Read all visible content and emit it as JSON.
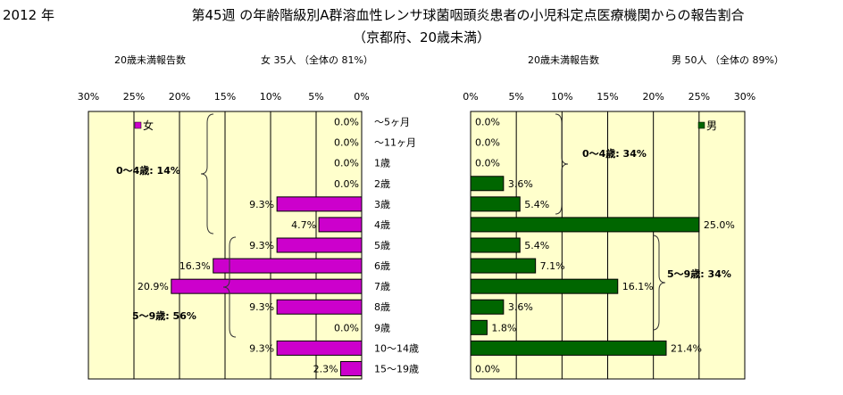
{
  "header": {
    "year": "2012 年",
    "title_line1": "第45週 の年齢階級別A群溶血性レンサ球菌咽頭炎患者の小児科定点医療機関からの報告割合",
    "title_line2": "（京都府、20歳未満）"
  },
  "colors": {
    "female_bar": "#cc00cc",
    "male_bar": "#006600",
    "plot_bg": "#ffffcc"
  },
  "chart_data": [
    {
      "type": "bar",
      "orientation": "horizontal",
      "direction": "right-to-left",
      "subtitle_left": "20歳未満報告数",
      "subtitle_right": "女  35人 （全体の  81%）",
      "legend": "女",
      "legend_position": "top-left",
      "xlim": [
        0,
        30
      ],
      "ticks": [
        "30%",
        "25%",
        "20%",
        "15%",
        "10%",
        "5%",
        "0%"
      ],
      "tick_values": [
        30,
        25,
        20,
        15,
        10,
        5,
        0
      ],
      "categories": [
        "～5ヶ月",
        "～11ヶ月",
        "1歳",
        "2歳",
        "3歳",
        "4歳",
        "5歳",
        "6歳",
        "7歳",
        "8歳",
        "9歳",
        "10～14歳",
        "15～19歳"
      ],
      "values": [
        0.0,
        0.0,
        0.0,
        0.0,
        9.3,
        4.7,
        9.3,
        16.3,
        20.9,
        9.3,
        0.0,
        9.3,
        2.3
      ],
      "data_labels": [
        "0.0%",
        "0.0%",
        "0.0%",
        "0.0%",
        "9.3%",
        "4.7%",
        "9.3%",
        "16.3%",
        "20.9%",
        "9.3%",
        "0.0%",
        "9.3%",
        "2.3%"
      ],
      "annotations": [
        {
          "text": "0～4歳: 14%",
          "range": [
            "～5ヶ月",
            "4歳"
          ]
        },
        {
          "text": "5～9歳: 56%",
          "range": [
            "5歳",
            "9歳"
          ]
        }
      ]
    },
    {
      "type": "bar",
      "orientation": "horizontal",
      "direction": "left-to-right",
      "subtitle_left": "20歳未満報告数",
      "subtitle_right": "男  50人 （全体の  89%）",
      "legend": "男",
      "legend_position": "top-right",
      "xlim": [
        0,
        30
      ],
      "ticks": [
        "0%",
        "5%",
        "10%",
        "15%",
        "20%",
        "25%",
        "30%"
      ],
      "tick_values": [
        0,
        5,
        10,
        15,
        20,
        25,
        30
      ],
      "categories": [
        "～5ヶ月",
        "～11ヶ月",
        "1歳",
        "2歳",
        "3歳",
        "4歳",
        "5歳",
        "6歳",
        "7歳",
        "8歳",
        "9歳",
        "10～14歳",
        "15～19歳"
      ],
      "values": [
        0.0,
        0.0,
        0.0,
        3.6,
        5.4,
        25.0,
        5.4,
        7.1,
        16.1,
        3.6,
        1.8,
        21.4,
        0.0
      ],
      "data_labels": [
        "0.0%",
        "0.0%",
        "0.0%",
        "3.6%",
        "5.4%",
        "25.0%",
        "5.4%",
        "7.1%",
        "16.1%",
        "3.6%",
        "1.8%",
        "21.4%",
        "0.0%"
      ],
      "annotations": [
        {
          "text": "0～4歳: 34%",
          "range": [
            "～5ヶ月",
            "4歳"
          ]
        },
        {
          "text": "5～9歳: 34%",
          "range": [
            "5歳",
            "9歳"
          ]
        }
      ]
    }
  ]
}
